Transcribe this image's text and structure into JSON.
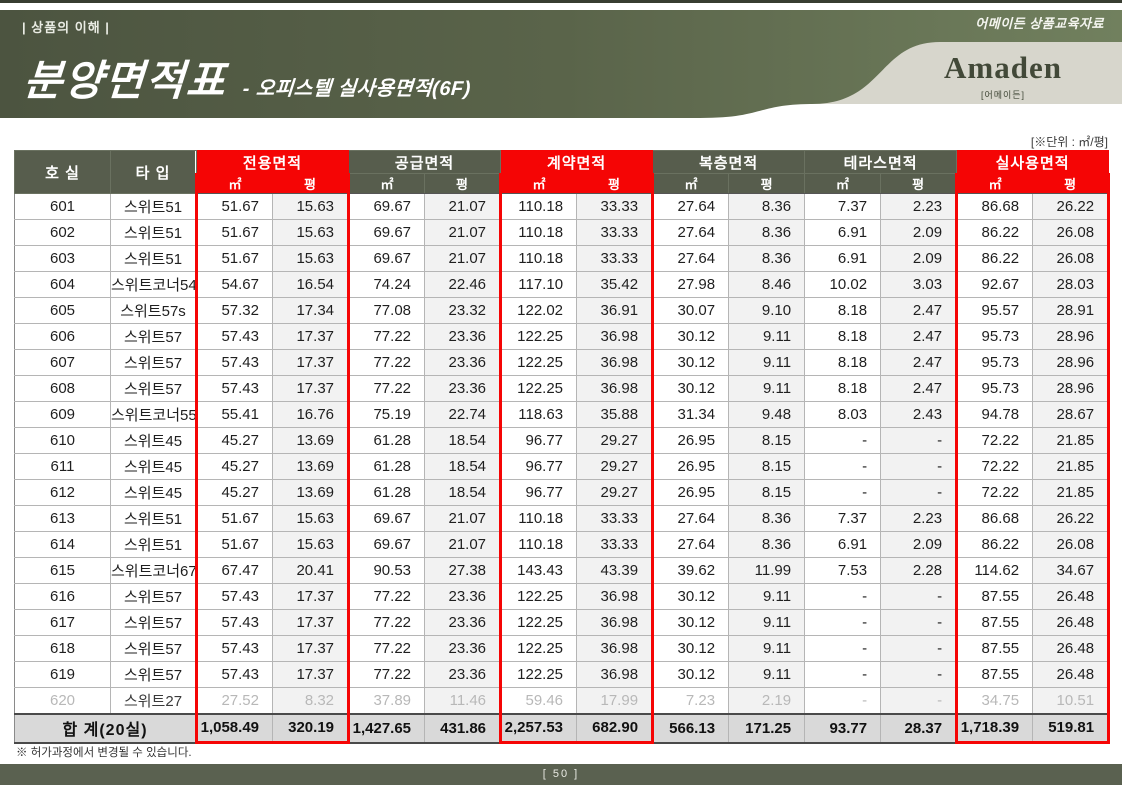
{
  "header": {
    "breadcrumb": "| 상품의 이해 |",
    "edu_note": "어메이든 상품교육자료",
    "title": "분양면적표",
    "subtitle": "- 오피스텔 실사용면적(6F)",
    "brand": "Amaden",
    "brand_sub": "[어메이든]"
  },
  "table": {
    "unit_note": "[※단위 : ㎡/평]",
    "room_header": "호 실",
    "type_header": "타 입",
    "sub_headers": [
      "㎡",
      "평"
    ],
    "groups": [
      {
        "label": "전용면적",
        "red": true
      },
      {
        "label": "공급면적",
        "red": false
      },
      {
        "label": "계약면적",
        "red": true
      },
      {
        "label": "복층면적",
        "red": false
      },
      {
        "label": "테라스면적",
        "red": false
      },
      {
        "label": "실사용면적",
        "red": true
      }
    ],
    "rows": [
      {
        "room": "601",
        "type": "스위트51",
        "dim": false,
        "values": [
          "51.67",
          "15.63",
          "69.67",
          "21.07",
          "110.18",
          "33.33",
          "27.64",
          "8.36",
          "7.37",
          "2.23",
          "86.68",
          "26.22"
        ]
      },
      {
        "room": "602",
        "type": "스위트51",
        "dim": false,
        "values": [
          "51.67",
          "15.63",
          "69.67",
          "21.07",
          "110.18",
          "33.33",
          "27.64",
          "8.36",
          "6.91",
          "2.09",
          "86.22",
          "26.08"
        ]
      },
      {
        "room": "603",
        "type": "스위트51",
        "dim": false,
        "values": [
          "51.67",
          "15.63",
          "69.67",
          "21.07",
          "110.18",
          "33.33",
          "27.64",
          "8.36",
          "6.91",
          "2.09",
          "86.22",
          "26.08"
        ]
      },
      {
        "room": "604",
        "type": "스위트코너54",
        "dim": false,
        "values": [
          "54.67",
          "16.54",
          "74.24",
          "22.46",
          "117.10",
          "35.42",
          "27.98",
          "8.46",
          "10.02",
          "3.03",
          "92.67",
          "28.03"
        ]
      },
      {
        "room": "605",
        "type": "스위트57s",
        "dim": false,
        "values": [
          "57.32",
          "17.34",
          "77.08",
          "23.32",
          "122.02",
          "36.91",
          "30.07",
          "9.10",
          "8.18",
          "2.47",
          "95.57",
          "28.91"
        ]
      },
      {
        "room": "606",
        "type": "스위트57",
        "dim": false,
        "values": [
          "57.43",
          "17.37",
          "77.22",
          "23.36",
          "122.25",
          "36.98",
          "30.12",
          "9.11",
          "8.18",
          "2.47",
          "95.73",
          "28.96"
        ]
      },
      {
        "room": "607",
        "type": "스위트57",
        "dim": false,
        "values": [
          "57.43",
          "17.37",
          "77.22",
          "23.36",
          "122.25",
          "36.98",
          "30.12",
          "9.11",
          "8.18",
          "2.47",
          "95.73",
          "28.96"
        ]
      },
      {
        "room": "608",
        "type": "스위트57",
        "dim": false,
        "values": [
          "57.43",
          "17.37",
          "77.22",
          "23.36",
          "122.25",
          "36.98",
          "30.12",
          "9.11",
          "8.18",
          "2.47",
          "95.73",
          "28.96"
        ]
      },
      {
        "room": "609",
        "type": "스위트코너55",
        "dim": false,
        "values": [
          "55.41",
          "16.76",
          "75.19",
          "22.74",
          "118.63",
          "35.88",
          "31.34",
          "9.48",
          "8.03",
          "2.43",
          "94.78",
          "28.67"
        ]
      },
      {
        "room": "610",
        "type": "스위트45",
        "dim": false,
        "values": [
          "45.27",
          "13.69",
          "61.28",
          "18.54",
          "96.77",
          "29.27",
          "26.95",
          "8.15",
          "-",
          "-",
          "72.22",
          "21.85"
        ]
      },
      {
        "room": "611",
        "type": "스위트45",
        "dim": false,
        "values": [
          "45.27",
          "13.69",
          "61.28",
          "18.54",
          "96.77",
          "29.27",
          "26.95",
          "8.15",
          "-",
          "-",
          "72.22",
          "21.85"
        ]
      },
      {
        "room": "612",
        "type": "스위트45",
        "dim": false,
        "values": [
          "45.27",
          "13.69",
          "61.28",
          "18.54",
          "96.77",
          "29.27",
          "26.95",
          "8.15",
          "-",
          "-",
          "72.22",
          "21.85"
        ]
      },
      {
        "room": "613",
        "type": "스위트51",
        "dim": false,
        "values": [
          "51.67",
          "15.63",
          "69.67",
          "21.07",
          "110.18",
          "33.33",
          "27.64",
          "8.36",
          "7.37",
          "2.23",
          "86.68",
          "26.22"
        ]
      },
      {
        "room": "614",
        "type": "스위트51",
        "dim": false,
        "values": [
          "51.67",
          "15.63",
          "69.67",
          "21.07",
          "110.18",
          "33.33",
          "27.64",
          "8.36",
          "6.91",
          "2.09",
          "86.22",
          "26.08"
        ]
      },
      {
        "room": "615",
        "type": "스위트코너67",
        "dim": false,
        "values": [
          "67.47",
          "20.41",
          "90.53",
          "27.38",
          "143.43",
          "43.39",
          "39.62",
          "11.99",
          "7.53",
          "2.28",
          "114.62",
          "34.67"
        ]
      },
      {
        "room": "616",
        "type": "스위트57",
        "dim": false,
        "values": [
          "57.43",
          "17.37",
          "77.22",
          "23.36",
          "122.25",
          "36.98",
          "30.12",
          "9.11",
          "-",
          "-",
          "87.55",
          "26.48"
        ]
      },
      {
        "room": "617",
        "type": "스위트57",
        "dim": false,
        "values": [
          "57.43",
          "17.37",
          "77.22",
          "23.36",
          "122.25",
          "36.98",
          "30.12",
          "9.11",
          "-",
          "-",
          "87.55",
          "26.48"
        ]
      },
      {
        "room": "618",
        "type": "스위트57",
        "dim": false,
        "values": [
          "57.43",
          "17.37",
          "77.22",
          "23.36",
          "122.25",
          "36.98",
          "30.12",
          "9.11",
          "-",
          "-",
          "87.55",
          "26.48"
        ]
      },
      {
        "room": "619",
        "type": "스위트57",
        "dim": false,
        "values": [
          "57.43",
          "17.37",
          "77.22",
          "23.36",
          "122.25",
          "36.98",
          "30.12",
          "9.11",
          "-",
          "-",
          "87.55",
          "26.48"
        ]
      },
      {
        "room": "620",
        "type": "스위트27",
        "dim": true,
        "values": [
          "27.52",
          "8.32",
          "37.89",
          "11.46",
          "59.46",
          "17.99",
          "7.23",
          "2.19",
          "-",
          "-",
          "34.75",
          "10.51"
        ]
      }
    ],
    "total": {
      "label": "합 계(20실)",
      "values": [
        "1,058.49",
        "320.19",
        "1,427.65",
        "431.86",
        "2,257.53",
        "682.90",
        "566.13",
        "171.25",
        "93.77",
        "28.37",
        "1,718.39",
        "519.81"
      ]
    }
  },
  "footer": {
    "footnote": "※ 허가과정에서 변경될 수 있습니다.",
    "page_number": "[ 50 ]"
  },
  "colors": {
    "accent_red": "#f50505",
    "header_olive": "#575d4d",
    "band_green_dark": "#4c5440",
    "band_green_light": "#71805e",
    "band_beige": "#d7d6cc",
    "footer_olive": "#5a6150"
  }
}
